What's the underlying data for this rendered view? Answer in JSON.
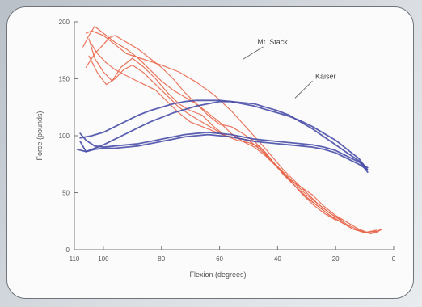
{
  "chart_data": {
    "type": "line",
    "xlabel": "Flexion (degrees)",
    "ylabel": "Force (pounds)",
    "x_reversed": true,
    "xlim": [
      110,
      0
    ],
    "ylim": [
      0,
      200
    ],
    "x_ticks": [
      "110",
      "100",
      "80",
      "60",
      "40",
      "20",
      "0"
    ],
    "y_ticks": [
      "0",
      "50",
      "100",
      "150",
      "200"
    ],
    "grid": false,
    "colors": {
      "red": "#e8664a",
      "blue": "#4a4fa8"
    },
    "annotations": [
      {
        "text": "Mt. Stack",
        "x": 47,
        "y": 180
      },
      {
        "text": "Kaiser",
        "x": 27,
        "y": 150
      }
    ],
    "series": [
      {
        "color": "#e8664a",
        "x": [
          106,
          104,
          100,
          96,
          92,
          86,
          80,
          74,
          68,
          62,
          56,
          50,
          44,
          38,
          32,
          26,
          22,
          16,
          12,
          8,
          6,
          4
        ],
        "y": [
          190,
          192,
          188,
          180,
          172,
          167,
          162,
          156,
          147,
          136,
          122,
          105,
          88,
          70,
          55,
          40,
          32,
          22,
          17,
          14,
          15,
          18
        ]
      },
      {
        "color": "#e8664a",
        "x": [
          107,
          105,
          103,
          100,
          96,
          92,
          88,
          84,
          80,
          76,
          72,
          68,
          64,
          60,
          56,
          52,
          48,
          44,
          40,
          36,
          32,
          28,
          24,
          20,
          16,
          12,
          8,
          6,
          4
        ],
        "y": [
          178,
          188,
          196,
          190,
          182,
          176,
          168,
          158,
          148,
          140,
          134,
          128,
          120,
          112,
          102,
          95,
          90,
          82,
          72,
          62,
          55,
          48,
          38,
          30,
          24,
          18,
          14,
          16,
          18
        ]
      },
      {
        "color": "#e8664a",
        "x": [
          106,
          103,
          100,
          98,
          96,
          92,
          88,
          84,
          80,
          76,
          72,
          68,
          64,
          60,
          56,
          52,
          48,
          44,
          40,
          36,
          32,
          28,
          24,
          20
        ],
        "y": [
          160,
          172,
          180,
          186,
          188,
          182,
          176,
          168,
          160,
          150,
          138,
          128,
          118,
          110,
          108,
          102,
          95,
          85,
          72,
          62,
          50,
          40,
          32,
          26
        ]
      },
      {
        "color": "#e8664a",
        "x": [
          105,
          103,
          100,
          97,
          94,
          90,
          86,
          82,
          78,
          74,
          70,
          66,
          62,
          58,
          54,
          50,
          46,
          42,
          38,
          34,
          30,
          26,
          22,
          18,
          14,
          10,
          6
        ],
        "y": [
          185,
          168,
          156,
          148,
          160,
          168,
          160,
          150,
          138,
          128,
          122,
          118,
          108,
          100,
          98,
          96,
          88,
          78,
          66,
          56,
          46,
          38,
          30,
          24,
          18,
          15,
          17
        ]
      },
      {
        "color": "#e8664a",
        "x": [
          105,
          102,
          99,
          96,
          93,
          90,
          86,
          82,
          78,
          74,
          70,
          66,
          62,
          58,
          54,
          50,
          46,
          42,
          38,
          34,
          30,
          26,
          22,
          18,
          14,
          10,
          6
        ],
        "y": [
          170,
          155,
          145,
          150,
          158,
          162,
          155,
          145,
          135,
          125,
          118,
          112,
          106,
          100,
          96,
          94,
          90,
          78,
          66,
          56,
          46,
          38,
          30,
          24,
          18,
          15,
          16
        ]
      },
      {
        "color": "#e8664a",
        "x": [
          104,
          102,
          99,
          96,
          93,
          90,
          86,
          82,
          78,
          74,
          70,
          66,
          62,
          58,
          54,
          50,
          46,
          42,
          38,
          34,
          30,
          26,
          22,
          18
        ],
        "y": [
          180,
          172,
          164,
          158,
          154,
          150,
          145,
          140,
          130,
          120,
          112,
          108,
          104,
          100,
          98,
          96,
          88,
          78,
          68,
          58,
          48,
          40,
          32,
          26
        ]
      },
      {
        "color": "#4a4fa8",
        "x": [
          108,
          104,
          100,
          96,
          92,
          88,
          84,
          80,
          76,
          72,
          68,
          64,
          60,
          56,
          52,
          48,
          44,
          40,
          36,
          32,
          28,
          24,
          20,
          16,
          12,
          9
        ],
        "y": [
          98,
          100,
          103,
          108,
          113,
          118,
          122,
          125,
          128,
          130,
          131,
          131,
          131,
          130,
          128,
          126,
          123,
          120,
          117,
          113,
          108,
          102,
          96,
          88,
          80,
          70
        ]
      },
      {
        "color": "#4a4fa8",
        "x": [
          109,
          106,
          103,
          100,
          96,
          92,
          88,
          84,
          80,
          76,
          72,
          68,
          64,
          60,
          56,
          52,
          48,
          44,
          40,
          36,
          32,
          28,
          24,
          20,
          16,
          12,
          9
        ],
        "y": [
          88,
          86,
          89,
          92,
          97,
          102,
          107,
          112,
          116,
          120,
          123,
          126,
          128,
          130,
          130,
          129,
          128,
          125,
          122,
          118,
          112,
          106,
          99,
          92,
          85,
          78,
          68
        ]
      },
      {
        "color": "#4a4fa8",
        "x": [
          108,
          106,
          103,
          100,
          96,
          92,
          88,
          84,
          80,
          76,
          72,
          68,
          64,
          60,
          56,
          52,
          48,
          44,
          40,
          36,
          32,
          28,
          24,
          20,
          16,
          12,
          9
        ],
        "y": [
          95,
          86,
          88,
          89,
          89,
          90,
          91,
          93,
          95,
          97,
          99,
          100,
          101,
          100,
          99,
          97,
          95,
          94,
          93,
          92,
          91,
          90,
          88,
          85,
          80,
          75,
          70
        ]
      },
      {
        "color": "#4a4fa8",
        "x": [
          108,
          106,
          103,
          100,
          96,
          92,
          88,
          84,
          80,
          76,
          72,
          68,
          64,
          60,
          56,
          52,
          48,
          44,
          40,
          36,
          32,
          28,
          24,
          20,
          16,
          12,
          9
        ],
        "y": [
          102,
          96,
          91,
          90,
          91,
          92,
          93,
          95,
          97,
          99,
          101,
          102,
          103,
          102,
          101,
          99,
          97,
          96,
          95,
          94,
          93,
          92,
          90,
          87,
          82,
          77,
          72
        ]
      }
    ]
  }
}
